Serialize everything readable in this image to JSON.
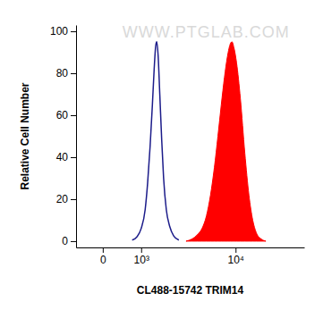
{
  "chart_data": {
    "type": "line",
    "x_label": "CL488-15742 TRIM14",
    "y_label": "Relative Cell Number",
    "annotations": [
      "WWW.PTGLAB.COM"
    ],
    "log": "x",
    "xlim": [
      -620,
      37000
    ],
    "xticks": [
      {
        "value": 0,
        "label": "0"
      },
      {
        "value": 1000,
        "label": "10³"
      },
      {
        "value": 10000,
        "label": "10⁴"
      }
    ],
    "ylim": [
      -3,
      103
    ],
    "yticks": [
      0,
      20,
      40,
      60,
      80,
      100
    ],
    "series": [
      {
        "type": "line",
        "color": "#1c1c8a",
        "x": [
          700,
          850,
          1000,
          1150,
          1250,
          1350,
          1450,
          1530,
          1600,
          1650,
          1720,
          1800,
          1900,
          2000,
          2150,
          2350,
          2600,
          2950
        ],
        "values": [
          0.5,
          2,
          6,
          15,
          28,
          45,
          65,
          82,
          93,
          95,
          88,
          70,
          48,
          30,
          15,
          7,
          2.5,
          0.5
        ]
      },
      {
        "type": "area",
        "color": "#ff0000",
        "x": [
          3500,
          4000,
          4500,
          5000,
          5500,
          6000,
          6500,
          7000,
          7500,
          8000,
          8500,
          9000,
          9300,
          9700,
          10200,
          11000,
          12000,
          13000,
          14000,
          15000,
          16500,
          18000
        ],
        "values": [
          0,
          1,
          3,
          6,
          12,
          22,
          35,
          50,
          65,
          78,
          88,
          94,
          95,
          92,
          85,
          68,
          42,
          22,
          10,
          4,
          1,
          0
        ]
      }
    ]
  }
}
